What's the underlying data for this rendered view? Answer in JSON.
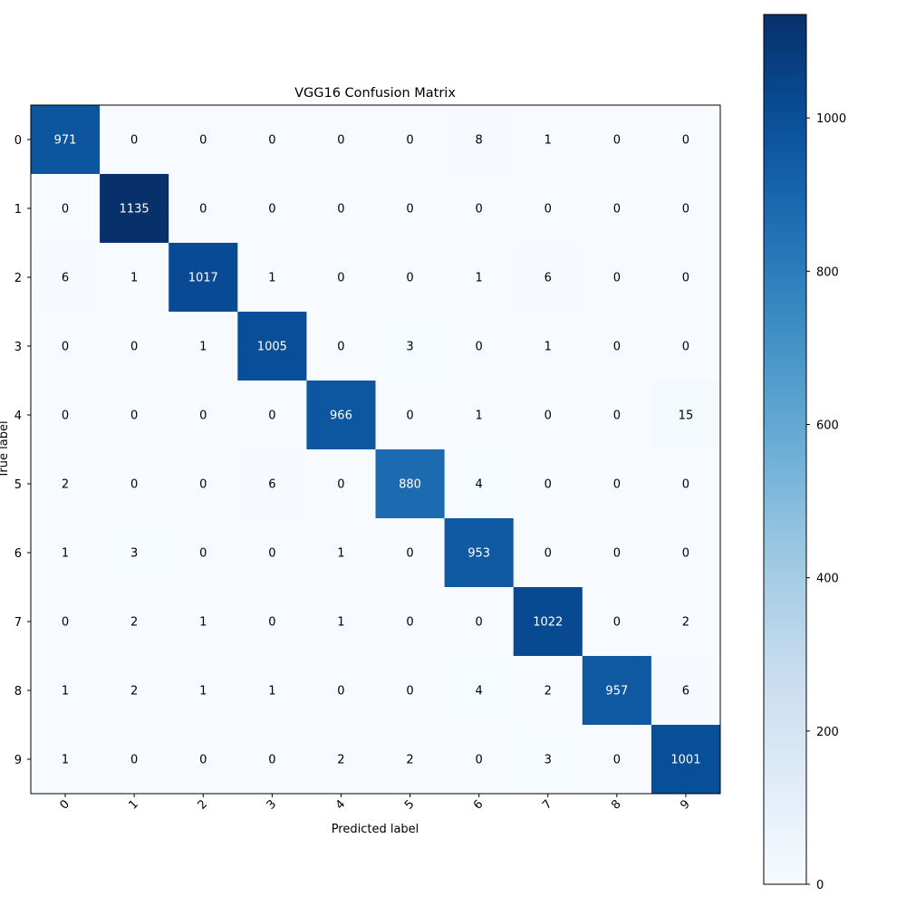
{
  "chart_data": {
    "type": "heatmap",
    "title": "VGG16 Confusion Matrix",
    "xlabel": "Predicted label",
    "ylabel": "True label",
    "x_categories": [
      "0",
      "1",
      "2",
      "3",
      "4",
      "5",
      "6",
      "7",
      "8",
      "9"
    ],
    "y_categories": [
      "0",
      "1",
      "2",
      "3",
      "4",
      "5",
      "6",
      "7",
      "8",
      "9"
    ],
    "values": [
      [
        971,
        0,
        0,
        0,
        0,
        0,
        8,
        1,
        0,
        0
      ],
      [
        0,
        1135,
        0,
        0,
        0,
        0,
        0,
        0,
        0,
        0
      ],
      [
        6,
        1,
        1017,
        1,
        0,
        0,
        1,
        6,
        0,
        0
      ],
      [
        0,
        0,
        1,
        1005,
        0,
        3,
        0,
        1,
        0,
        0
      ],
      [
        0,
        0,
        0,
        0,
        966,
        0,
        1,
        0,
        0,
        15
      ],
      [
        2,
        0,
        0,
        6,
        0,
        880,
        4,
        0,
        0,
        0
      ],
      [
        1,
        3,
        0,
        0,
        1,
        0,
        953,
        0,
        0,
        0
      ],
      [
        0,
        2,
        1,
        0,
        1,
        0,
        0,
        1022,
        0,
        2
      ],
      [
        1,
        2,
        1,
        1,
        0,
        0,
        4,
        2,
        957,
        6
      ],
      [
        1,
        0,
        0,
        0,
        2,
        2,
        0,
        3,
        0,
        1001
      ]
    ],
    "colormap": "Blues",
    "colorbar": {
      "range": [
        0,
        1135
      ],
      "ticks": [
        "0",
        "200",
        "400",
        "600",
        "800",
        "1000"
      ],
      "tick_values": [
        0,
        200,
        400,
        600,
        800,
        1000
      ]
    },
    "colors": {
      "low": "#f7fbff",
      "high": "#08306b",
      "text_dark": "#000000",
      "text_light": "#ffffff"
    }
  }
}
